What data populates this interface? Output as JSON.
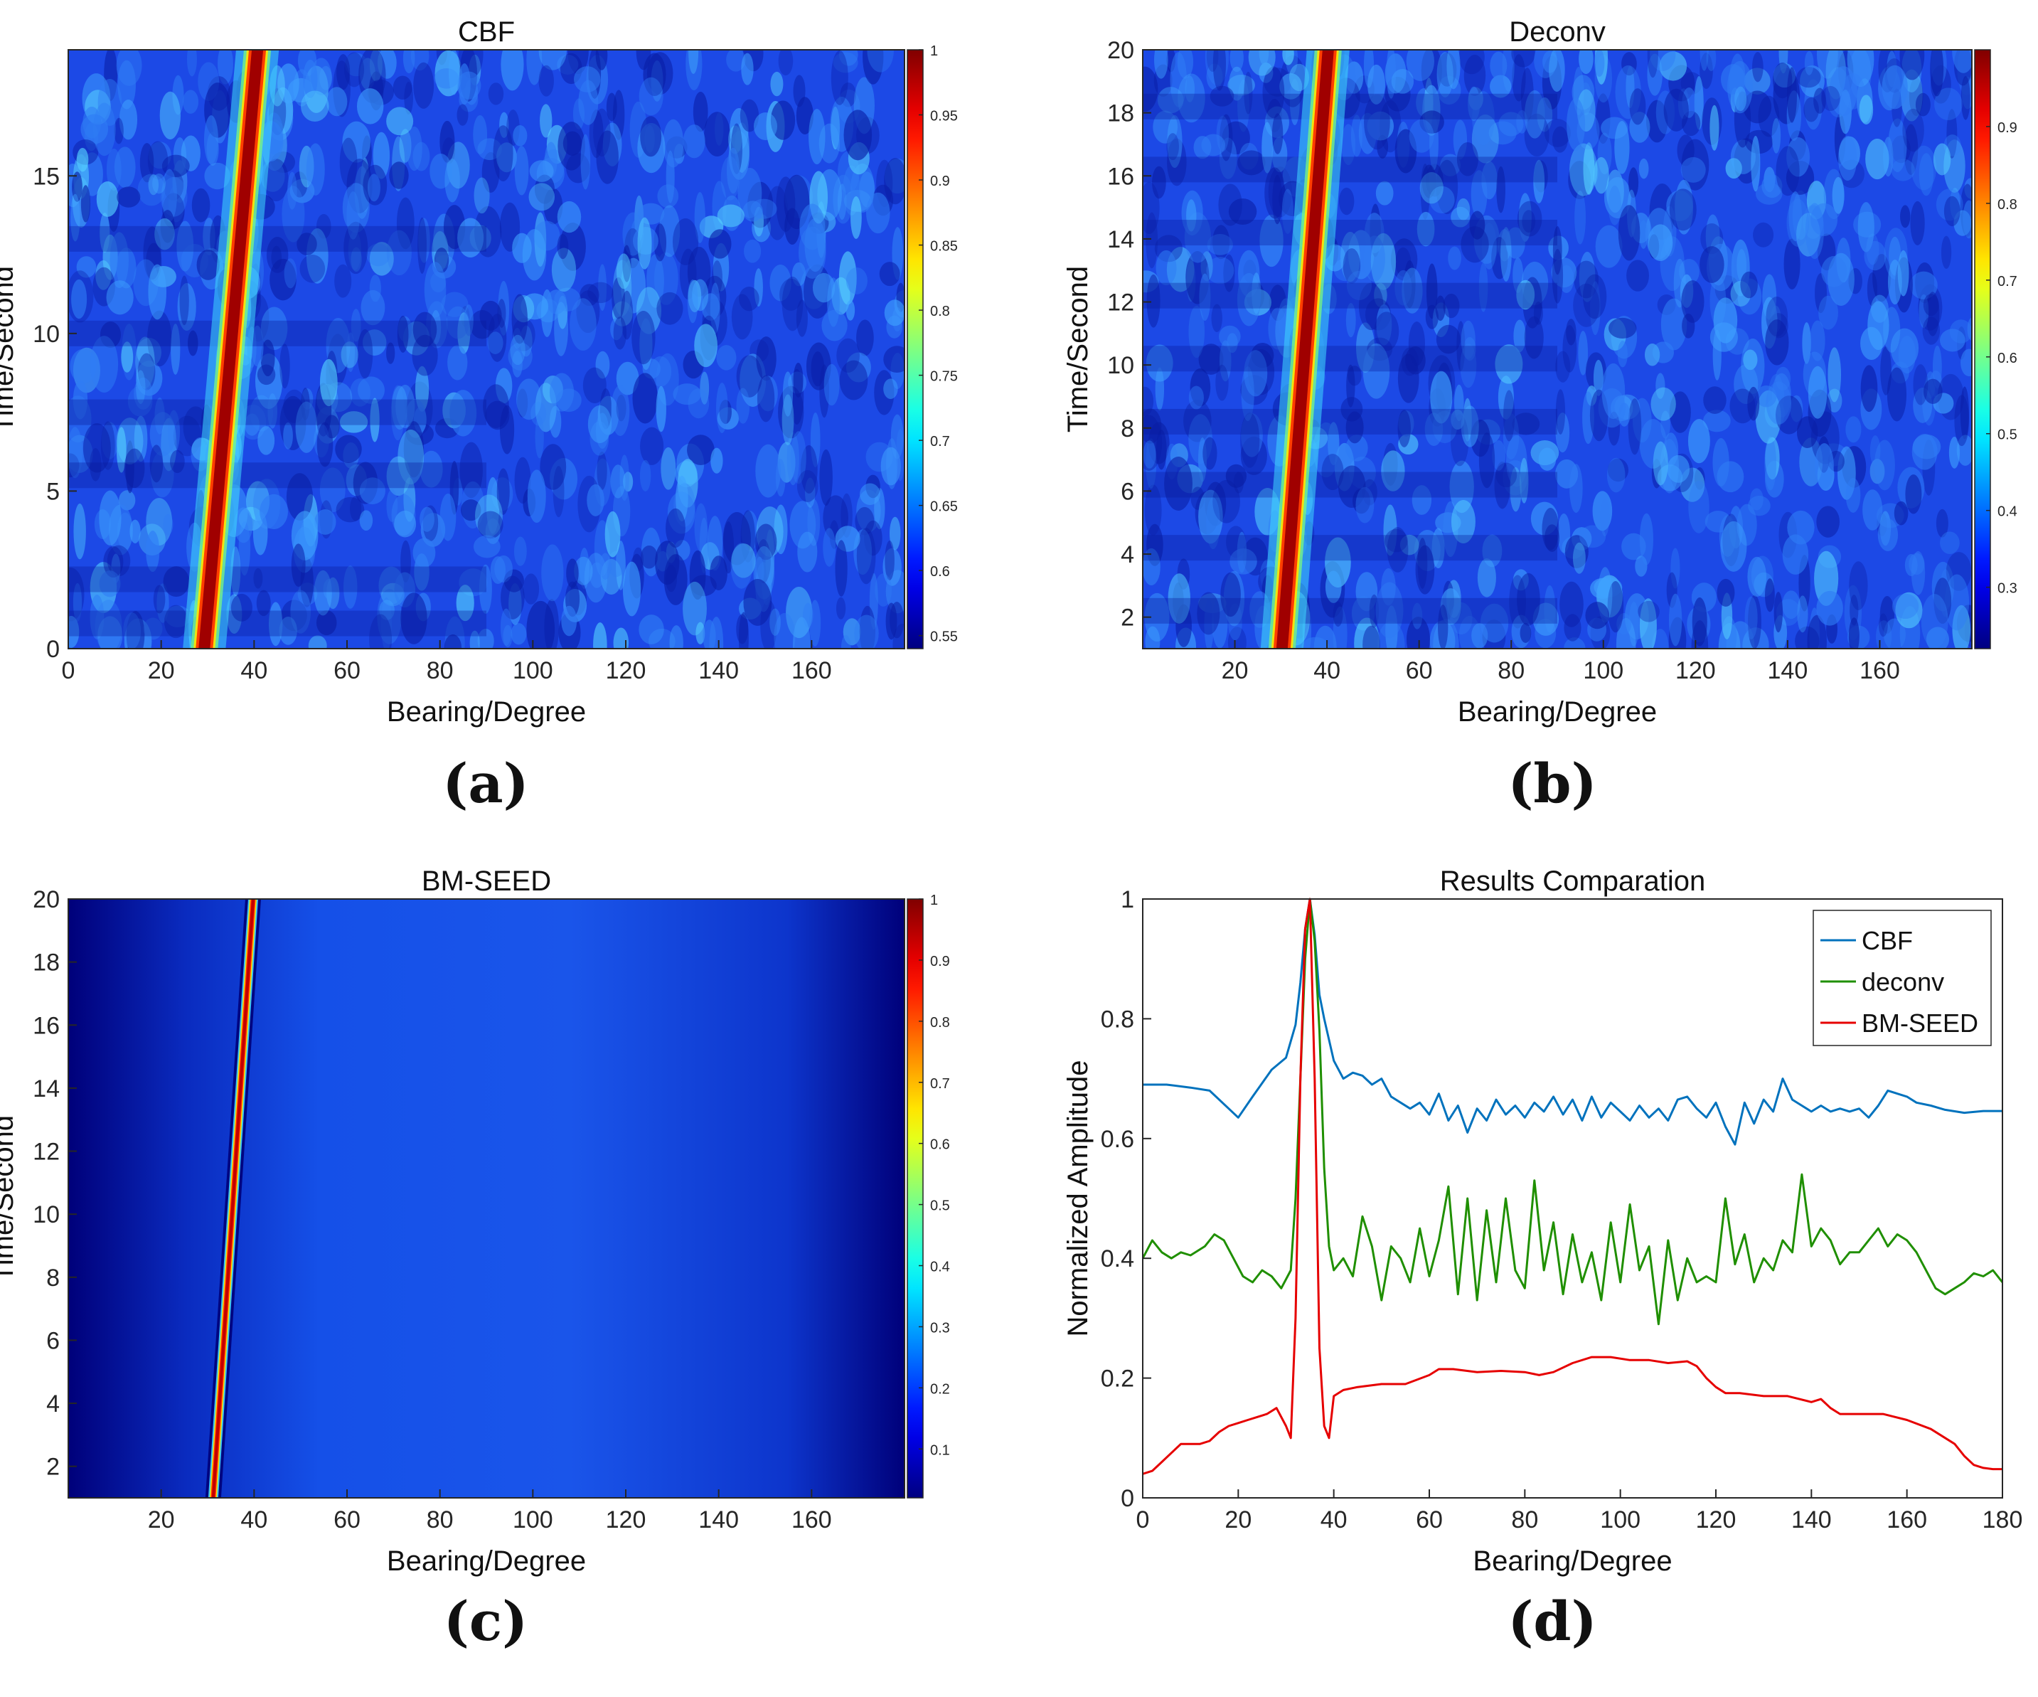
{
  "figure": {
    "panel_labels": [
      "(a)",
      "(b)",
      "(c)",
      "(d)"
    ]
  },
  "chart_data": [
    {
      "type": "heatmap",
      "panel": "(a)",
      "title": "CBF",
      "xlabel": "Bearing/Degree",
      "ylabel": "Time/Second",
      "xlim": [
        0,
        180
      ],
      "ylim": [
        0,
        19
      ],
      "xticks": [
        0,
        20,
        40,
        60,
        80,
        100,
        120,
        140,
        160
      ],
      "yticks": [
        0,
        5,
        10,
        15
      ],
      "colorbar": {
        "range": [
          0.54,
          1
        ],
        "ticks": [
          0.55,
          0.6,
          0.65,
          0.7,
          0.75,
          0.8,
          0.85,
          0.9,
          0.95,
          1
        ],
        "tick_labels": [
          "0.55",
          "0.6",
          "0.65",
          "0.7",
          "0.75",
          "0.8",
          "0.85",
          "0.9",
          "0.95",
          "1"
        ]
      },
      "target_track": {
        "bearing_start": 29,
        "bearing_end": 41,
        "time_start": 0,
        "time_end": 19
      },
      "colors": {
        "background": "#1c49e6",
        "track": "#a00000"
      }
    },
    {
      "type": "heatmap",
      "panel": "(b)",
      "title": "Deconv",
      "xlabel": "Bearing/Degree",
      "ylabel": "Time/Second",
      "xlim": [
        0,
        180
      ],
      "ylim": [
        1,
        20
      ],
      "xticks": [
        20,
        40,
        60,
        80,
        100,
        120,
        140,
        160
      ],
      "yticks": [
        2,
        4,
        6,
        8,
        10,
        12,
        14,
        16,
        18,
        20
      ],
      "colorbar": {
        "range": [
          0.22,
          1
        ],
        "ticks": [
          0.3,
          0.4,
          0.5,
          0.6,
          0.7,
          0.8,
          0.9
        ],
        "tick_labels": [
          "0.3",
          "0.4",
          "0.5",
          "0.6",
          "0.7",
          "0.8",
          "0.9"
        ]
      },
      "target_track": {
        "bearing_start": 30,
        "bearing_end": 40.5,
        "time_start": 1,
        "time_end": 20
      },
      "colors": {
        "background": "#1c49e6",
        "track": "#a00000"
      }
    },
    {
      "type": "heatmap",
      "panel": "(c)",
      "title": "BM-SEED",
      "xlabel": "Bearing/Degree",
      "ylabel": "Time/Second",
      "xlim": [
        0,
        180
      ],
      "ylim": [
        1,
        20
      ],
      "xticks": [
        20,
        40,
        60,
        80,
        100,
        120,
        140,
        160
      ],
      "yticks": [
        2,
        4,
        6,
        8,
        10,
        12,
        14,
        16,
        18,
        20
      ],
      "colorbar": {
        "range": [
          0.02,
          1
        ],
        "ticks": [
          0.1,
          0.2,
          0.3,
          0.4,
          0.5,
          0.6,
          0.7,
          0.8,
          0.9,
          1
        ],
        "tick_labels": [
          "0.1",
          "0.2",
          "0.3",
          "0.4",
          "0.5",
          "0.6",
          "0.7",
          "0.8",
          "0.9",
          "1"
        ]
      },
      "target_track": {
        "bearing_start": 31,
        "bearing_end": 40,
        "time_start": 1,
        "time_end": 20
      },
      "colors": {
        "background": "#0f3fd8",
        "edge": "#00007a",
        "track": "#c00000"
      }
    },
    {
      "type": "line",
      "panel": "(d)",
      "title": "Results Comparation",
      "xlabel": "Bearing/Degree",
      "ylabel": "Normalized Amplitude",
      "xlim": [
        0,
        180
      ],
      "ylim": [
        0,
        1
      ],
      "xticks": [
        0,
        20,
        40,
        60,
        80,
        100,
        120,
        140,
        160,
        180
      ],
      "yticks": [
        0,
        0.2,
        0.4,
        0.6,
        0.8,
        1
      ],
      "ytick_labels": [
        "0",
        "0.2",
        "0.4",
        "0.6",
        "0.8",
        "1"
      ],
      "legend": {
        "position": "top-right"
      },
      "series": [
        {
          "name": "CBF",
          "color": "#0072bd",
          "x": [
            0,
            5,
            10,
            14,
            18,
            20,
            23,
            27,
            30,
            32,
            33,
            34,
            35,
            36,
            37,
            38,
            40,
            42,
            44,
            46,
            48,
            50,
            52,
            54,
            56,
            58,
            60,
            62,
            64,
            66,
            68,
            70,
            72,
            74,
            76,
            78,
            80,
            82,
            84,
            86,
            88,
            90,
            92,
            94,
            96,
            98,
            100,
            102,
            104,
            106,
            108,
            110,
            112,
            114,
            116,
            118,
            120,
            122,
            124,
            126,
            128,
            130,
            132,
            134,
            136,
            138,
            140,
            142,
            144,
            146,
            148,
            150,
            152,
            154,
            156,
            158,
            160,
            162,
            165,
            168,
            172,
            176,
            180
          ],
          "y": [
            0.69,
            0.69,
            0.685,
            0.68,
            0.65,
            0.635,
            0.67,
            0.715,
            0.735,
            0.79,
            0.86,
            0.95,
            1.0,
            0.94,
            0.84,
            0.8,
            0.73,
            0.7,
            0.71,
            0.705,
            0.69,
            0.7,
            0.67,
            0.66,
            0.65,
            0.66,
            0.64,
            0.675,
            0.63,
            0.655,
            0.61,
            0.65,
            0.63,
            0.665,
            0.64,
            0.655,
            0.635,
            0.66,
            0.645,
            0.67,
            0.64,
            0.665,
            0.63,
            0.67,
            0.635,
            0.66,
            0.645,
            0.63,
            0.655,
            0.635,
            0.65,
            0.63,
            0.665,
            0.67,
            0.65,
            0.635,
            0.66,
            0.62,
            0.59,
            0.66,
            0.625,
            0.665,
            0.645,
            0.7,
            0.665,
            0.655,
            0.645,
            0.655,
            0.645,
            0.65,
            0.645,
            0.65,
            0.635,
            0.655,
            0.68,
            0.675,
            0.67,
            0.66,
            0.655,
            0.648,
            0.643,
            0.646,
            0.646
          ]
        },
        {
          "name": "deconv",
          "color": "#1f8f00",
          "x": [
            0,
            2,
            4,
            6,
            8,
            10,
            13,
            15,
            17,
            19,
            21,
            23,
            25,
            27,
            29,
            31,
            32,
            33,
            34,
            35,
            36,
            37,
            38,
            39,
            40,
            42,
            44,
            46,
            48,
            50,
            52,
            54,
            56,
            58,
            60,
            62,
            64,
            66,
            68,
            70,
            72,
            74,
            76,
            78,
            80,
            82,
            84,
            86,
            88,
            90,
            92,
            94,
            96,
            98,
            100,
            102,
            104,
            106,
            108,
            110,
            112,
            114,
            116,
            118,
            120,
            122,
            124,
            126,
            128,
            130,
            132,
            134,
            136,
            138,
            140,
            142,
            144,
            146,
            148,
            150,
            152,
            154,
            156,
            158,
            160,
            162,
            164,
            166,
            168,
            170,
            172,
            174,
            176,
            178,
            180
          ],
          "y": [
            0.4,
            0.43,
            0.41,
            0.4,
            0.41,
            0.405,
            0.42,
            0.44,
            0.43,
            0.4,
            0.37,
            0.36,
            0.38,
            0.37,
            0.35,
            0.38,
            0.5,
            0.7,
            0.9,
            1.0,
            0.93,
            0.78,
            0.55,
            0.42,
            0.38,
            0.4,
            0.37,
            0.47,
            0.42,
            0.33,
            0.42,
            0.4,
            0.36,
            0.45,
            0.37,
            0.43,
            0.52,
            0.34,
            0.5,
            0.33,
            0.48,
            0.36,
            0.5,
            0.38,
            0.35,
            0.53,
            0.38,
            0.46,
            0.34,
            0.44,
            0.36,
            0.41,
            0.33,
            0.46,
            0.36,
            0.49,
            0.38,
            0.42,
            0.29,
            0.43,
            0.33,
            0.4,
            0.36,
            0.37,
            0.36,
            0.5,
            0.39,
            0.44,
            0.36,
            0.4,
            0.38,
            0.43,
            0.41,
            0.54,
            0.42,
            0.45,
            0.43,
            0.39,
            0.41,
            0.41,
            0.43,
            0.45,
            0.42,
            0.44,
            0.43,
            0.41,
            0.38,
            0.35,
            0.34,
            0.35,
            0.36,
            0.375,
            0.37,
            0.38,
            0.36
          ]
        },
        {
          "name": "BM-SEED",
          "color": "#e60000",
          "x": [
            0,
            2,
            4,
            6,
            8,
            10,
            12,
            14,
            16,
            18,
            20,
            22,
            24,
            26,
            28,
            30,
            31,
            32,
            33,
            34,
            35,
            36,
            37,
            38,
            39,
            40,
            42,
            45,
            50,
            55,
            60,
            62,
            65,
            70,
            75,
            80,
            83,
            86,
            90,
            94,
            98,
            102,
            106,
            110,
            114,
            116,
            118,
            120,
            122,
            125,
            130,
            135,
            140,
            142,
            144,
            146,
            150,
            155,
            160,
            165,
            170,
            172,
            174,
            176,
            178,
            180
          ],
          "y": [
            0.04,
            0.045,
            0.06,
            0.075,
            0.09,
            0.09,
            0.09,
            0.095,
            0.11,
            0.12,
            0.125,
            0.13,
            0.135,
            0.14,
            0.15,
            0.12,
            0.1,
            0.3,
            0.7,
            0.95,
            1.0,
            0.7,
            0.25,
            0.12,
            0.1,
            0.17,
            0.18,
            0.185,
            0.19,
            0.19,
            0.205,
            0.215,
            0.215,
            0.21,
            0.212,
            0.21,
            0.205,
            0.21,
            0.225,
            0.235,
            0.235,
            0.23,
            0.23,
            0.225,
            0.228,
            0.22,
            0.2,
            0.185,
            0.175,
            0.175,
            0.17,
            0.17,
            0.16,
            0.165,
            0.15,
            0.14,
            0.14,
            0.14,
            0.13,
            0.115,
            0.09,
            0.07,
            0.055,
            0.05,
            0.048,
            0.048
          ]
        }
      ]
    }
  ]
}
